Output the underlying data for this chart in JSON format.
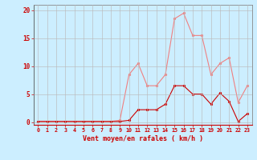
{
  "x": [
    0,
    1,
    2,
    3,
    4,
    5,
    6,
    7,
    8,
    9,
    10,
    11,
    12,
    13,
    14,
    15,
    16,
    17,
    18,
    19,
    20,
    21,
    22,
    23
  ],
  "y_rafales": [
    0.1,
    0.1,
    0.1,
    0.1,
    0.1,
    0.1,
    0.1,
    0.1,
    0.1,
    0.3,
    8.5,
    10.5,
    6.5,
    6.5,
    8.5,
    18.5,
    19.5,
    15.5,
    15.5,
    8.5,
    10.5,
    11.5,
    3.5,
    6.5
  ],
  "y_moyen": [
    0.1,
    0.1,
    0.1,
    0.1,
    0.1,
    0.1,
    0.1,
    0.1,
    0.1,
    0.1,
    0.3,
    2.2,
    2.2,
    2.2,
    3.2,
    6.5,
    6.5,
    5.0,
    5.0,
    3.2,
    5.2,
    3.7,
    0.1,
    1.5
  ],
  "color_rafales": "#f08080",
  "color_moyen": "#cc0000",
  "bg_color": "#cceeff",
  "grid_color": "#bbbbbb",
  "xlabel": "Vent moyen/en rafales ( km/h )",
  "xlabel_color": "#cc0000",
  "tick_color": "#cc0000",
  "ylim": [
    -0.5,
    21
  ],
  "yticks": [
    0,
    5,
    10,
    15,
    20
  ],
  "xlim": [
    -0.5,
    23.5
  ],
  "xticks": [
    0,
    1,
    2,
    3,
    4,
    5,
    6,
    7,
    8,
    9,
    10,
    11,
    12,
    13,
    14,
    15,
    16,
    17,
    18,
    19,
    20,
    21,
    22,
    23
  ]
}
